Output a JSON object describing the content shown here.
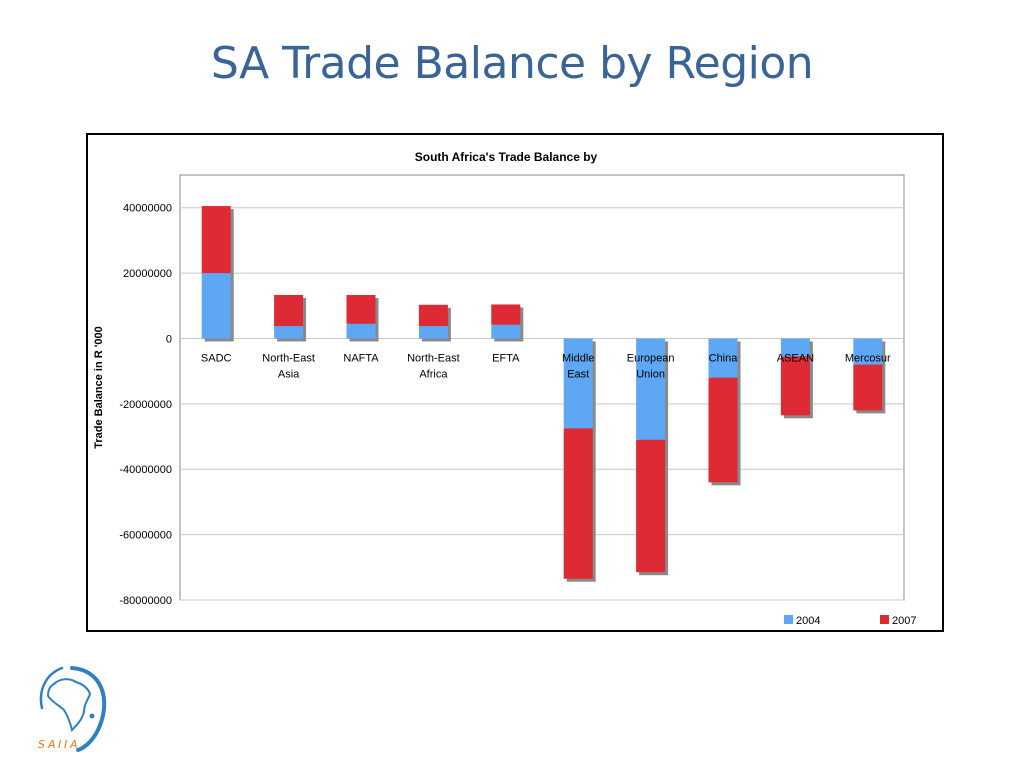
{
  "slide": {
    "title": "SA Trade Balance by Region"
  },
  "logo": {
    "text": "SAIIA"
  },
  "chart_data": {
    "type": "bar",
    "stacked": true,
    "title": "South Africa's Trade Balance by",
    "xlabel": "",
    "ylabel": "Trade Balance in R '000",
    "ylim": [
      -80000000,
      50000000
    ],
    "yticks": [
      40000000,
      20000000,
      0,
      -20000000,
      -40000000,
      -60000000,
      -80000000
    ],
    "grid": true,
    "legend_position": "bottom-right",
    "categories": [
      "SADC",
      "North-East Asia",
      "NAFTA",
      "North-East Africa",
      "EFTA",
      "Middle East",
      "European Union",
      "China",
      "ASEAN",
      "Mercosur"
    ],
    "series": [
      {
        "name": "2004",
        "color": "#5ea7f5",
        "values": [
          20000000,
          3800000,
          4500000,
          3800000,
          4200000,
          -27500000,
          -31000000,
          -12000000,
          -5500000,
          -8000000
        ]
      },
      {
        "name": "2007",
        "color": "#dd2a34",
        "values": [
          20500000,
          9500000,
          8800000,
          6500000,
          6200000,
          -46000000,
          -40500000,
          -32000000,
          -18000000,
          -14000000
        ]
      }
    ]
  }
}
